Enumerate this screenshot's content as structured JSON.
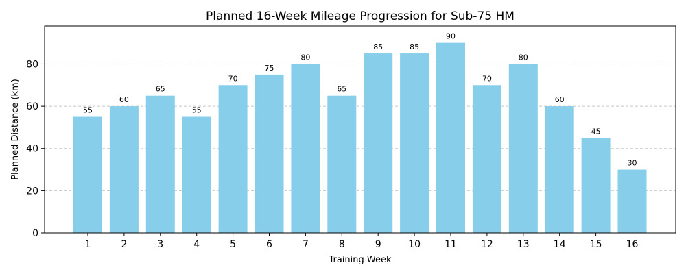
{
  "chart_data": {
    "type": "bar",
    "title": "Planned 16-Week Mileage Progression for Sub-75 HM",
    "xlabel": "Training Week",
    "ylabel": "Planned Distance (km)",
    "categories": [
      "1",
      "2",
      "3",
      "4",
      "5",
      "6",
      "7",
      "8",
      "9",
      "10",
      "11",
      "12",
      "13",
      "14",
      "15",
      "16"
    ],
    "values": [
      55,
      60,
      65,
      55,
      70,
      75,
      80,
      65,
      85,
      85,
      90,
      70,
      80,
      60,
      45,
      30
    ],
    "ylim": [
      0,
      98
    ],
    "yticks": [
      0,
      20,
      40,
      60,
      80
    ],
    "grid": true,
    "grid_axis": "y",
    "bar_color": "#87CEEB"
  }
}
